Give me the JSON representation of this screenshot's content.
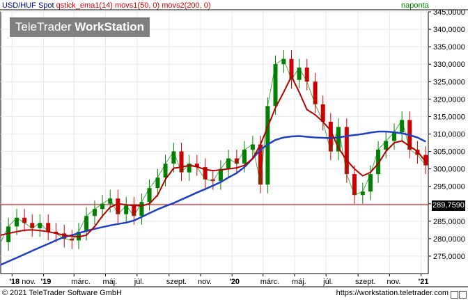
{
  "header": {
    "symbol": "USD/HUF Spot",
    "indicators": "qstick_ema1(14) movs1(50, 0) movs2(200, 0)",
    "period": "naponta"
  },
  "logo": {
    "text_regular": "TeleTrader ",
    "text_bold": "WorkStation"
  },
  "footer": {
    "copyright": "© 2021 TeleTrader Software GmbH",
    "url": "https://workstation.teletrader.com"
  },
  "colors": {
    "price": "#008000",
    "price_down": "#cc0000",
    "ma50": "#b00000",
    "ma200": "#1f3fbf",
    "hline": "#a00000",
    "grid": "#e8e8e8",
    "border": "#000000"
  },
  "chart_data": {
    "type": "line",
    "title": "USD/HUF Spot",
    "period": "naponta",
    "xlabel": "",
    "ylabel": "",
    "ylim": [
      270000,
      345000
    ],
    "y_ticks": [
      275000,
      280000,
      285000,
      290000,
      295000,
      300000,
      305000,
      310000,
      315000,
      320000,
      325000,
      330000,
      335000,
      340000,
      345000
    ],
    "y_tick_labels": [
      "275,0000",
      "280,0000",
      "285,0000",
      "290,0000",
      "295,0000",
      "300,0000",
      "305,0000",
      "310,0000",
      "315,0000",
      "320,0000",
      "325,0000",
      "330,0000",
      "335,0000",
      "340,0000",
      "345,0000"
    ],
    "x_labels": [
      {
        "label": "'18 nov.",
        "bold_prefix": "'18",
        "date": "2018-11-01"
      },
      {
        "label": "'19",
        "bold_prefix": "'19",
        "date": "2019-01-01"
      },
      {
        "label": "márc.",
        "date": "2019-03-01"
      },
      {
        "label": "máj.",
        "date": "2019-05-01"
      },
      {
        "label": "júl.",
        "date": "2019-07-01"
      },
      {
        "label": "szept.",
        "date": "2019-09-01"
      },
      {
        "label": "nov.",
        "date": "2019-11-01"
      },
      {
        "label": "'20",
        "bold_prefix": "'20",
        "date": "2020-01-01"
      },
      {
        "label": "márc.",
        "date": "2020-03-01"
      },
      {
        "label": "máj.",
        "date": "2020-05-01"
      },
      {
        "label": "júl.",
        "date": "2020-07-01"
      },
      {
        "label": "szept.",
        "date": "2020-09-01"
      },
      {
        "label": "nov.",
        "date": "2020-11-01"
      },
      {
        "label": "'21",
        "bold_prefix": "'21",
        "date": "2021-01-01"
      }
    ],
    "x_range": [
      "2018-10-10",
      "2021-01-15"
    ],
    "last_value": 289759,
    "last_value_label": "289,7590",
    "series": [
      {
        "name": "USD/HUF Spot",
        "style": "candlestick",
        "x": [
          "2018-10-10",
          "2018-10-25",
          "2018-11-10",
          "2018-11-25",
          "2018-12-10",
          "2018-12-25",
          "2019-01-10",
          "2019-01-25",
          "2019-02-10",
          "2019-02-25",
          "2019-03-10",
          "2019-03-25",
          "2019-04-10",
          "2019-04-25",
          "2019-05-10",
          "2019-05-25",
          "2019-06-10",
          "2019-06-25",
          "2019-07-10",
          "2019-07-25",
          "2019-08-10",
          "2019-08-25",
          "2019-09-10",
          "2019-09-25",
          "2019-10-10",
          "2019-10-25",
          "2019-11-10",
          "2019-11-25",
          "2019-12-10",
          "2019-12-25",
          "2020-01-10",
          "2020-01-25",
          "2020-02-10",
          "2020-02-25",
          "2020-03-10",
          "2020-03-25",
          "2020-04-10",
          "2020-04-25",
          "2020-05-10",
          "2020-05-25",
          "2020-06-10",
          "2020-06-25",
          "2020-07-10",
          "2020-07-25",
          "2020-08-10",
          "2020-08-25",
          "2020-09-10",
          "2020-09-25",
          "2020-10-10",
          "2020-10-25",
          "2020-11-10",
          "2020-11-25",
          "2020-12-10",
          "2020-12-25",
          "2021-01-10"
        ],
        "values": [
          279000,
          283500,
          286000,
          284500,
          283000,
          284500,
          282000,
          281500,
          280000,
          279500,
          282000,
          286500,
          288500,
          290000,
          291500,
          287000,
          289500,
          286500,
          290500,
          294500,
          297500,
          301500,
          305000,
          299000,
          301500,
          300500,
          297000,
          296500,
          300000,
          303000,
          301500,
          305500,
          307000,
          295500,
          318000,
          330000,
          331500,
          325500,
          329000,
          325000,
          318500,
          313500,
          305000,
          312000,
          298500,
          292500,
          293500,
          298500,
          305500,
          308000,
          310500,
          314000,
          305500,
          304000,
          301000
        ]
      },
      {
        "name": "movs1(50, 0)",
        "values": [
          281000,
          281500,
          282000,
          282400,
          282500,
          282300,
          282000,
          281500,
          281000,
          280700,
          280500,
          281000,
          283500,
          286500,
          289000,
          290000,
          289700,
          289500,
          289400,
          290000,
          292500,
          297000,
          300200,
          300500,
          301000,
          300600,
          299800,
          299500,
          299700,
          300000,
          300300,
          301000,
          303000,
          307000,
          312000,
          317500,
          322000,
          326500,
          322000,
          317000,
          315500,
          313500,
          311000,
          306000,
          302500,
          300000,
          298000,
          299000,
          301500,
          305000,
          307500,
          308000,
          306500,
          305000,
          302000
        ]
      },
      {
        "name": "movs2(200, 0)",
        "values": [
          272500,
          273500,
          274500,
          275500,
          276500,
          277500,
          278500,
          279500,
          280500,
          281000,
          281600,
          282200,
          282800,
          283300,
          283800,
          284200,
          284600,
          285200,
          286200,
          287300,
          288400,
          289300,
          290200,
          291200,
          292200,
          293200,
          294200,
          295200,
          296200,
          297500,
          298800,
          300500,
          303000,
          305500,
          307000,
          308300,
          309000,
          309300,
          309400,
          309200,
          309000,
          308900,
          308800,
          309000,
          309400,
          309700,
          310000,
          310400,
          310700,
          310700,
          310500,
          310200,
          309700,
          309000,
          307800
        ]
      },
      {
        "name": "289,7590",
        "style": "hline",
        "values": [
          289759
        ]
      }
    ]
  }
}
